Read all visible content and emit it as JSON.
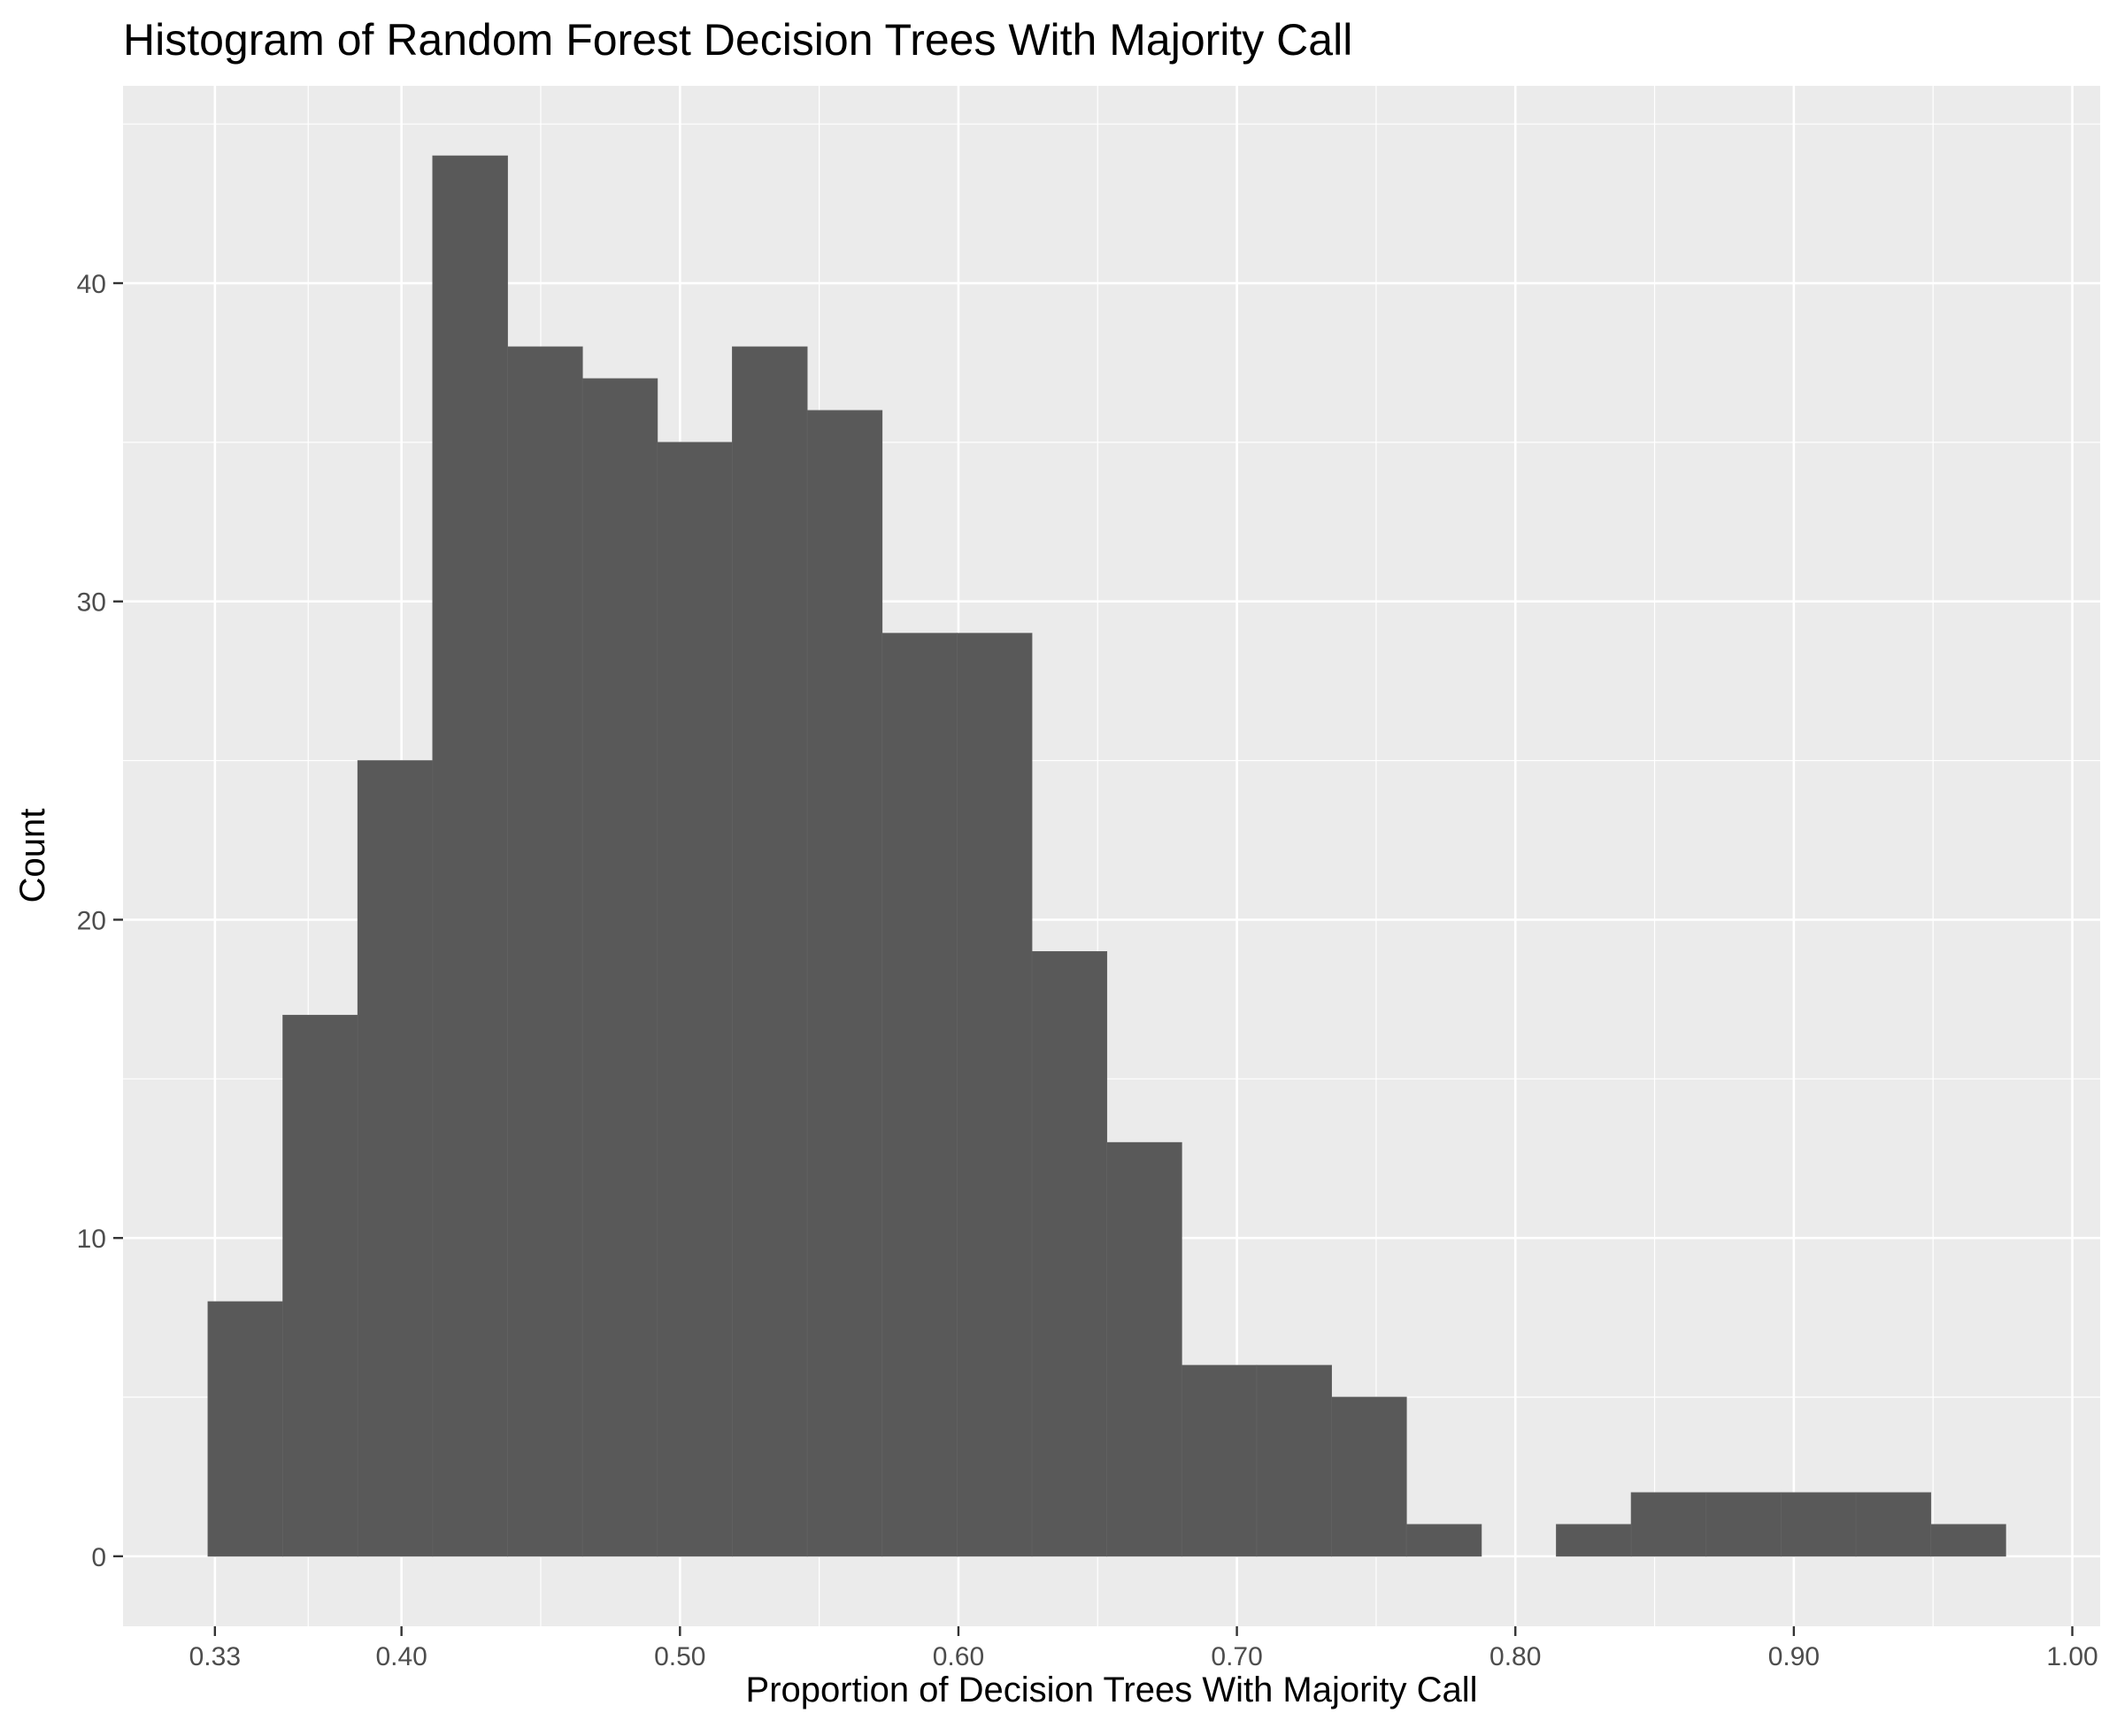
{
  "chart_data": {
    "type": "bar",
    "title": "Histogram of Random Forest Decision Trees With Majority Call",
    "xlabel": "Proportion of Decision Trees With Majority Call",
    "ylabel": "Count",
    "xlim": [
      0.3,
      1.01
    ],
    "ylim": [
      -2.2,
      46.2
    ],
    "x_ticks": [
      0.333,
      0.4,
      0.5,
      0.6,
      0.7,
      0.8,
      0.9,
      1.0
    ],
    "x_tick_labels": [
      "0.33",
      "0.40",
      "0.50",
      "0.60",
      "0.70",
      "0.80",
      "0.90",
      "1.00"
    ],
    "y_ticks": [
      0,
      10,
      20,
      30,
      40
    ],
    "y_tick_labels": [
      "0",
      "10",
      "20",
      "30",
      "40"
    ],
    "bin_width": 0.0269,
    "bin_starts": [
      0.3305,
      0.3574,
      0.3843,
      0.4112,
      0.4381,
      0.465,
      0.4919,
      0.5188,
      0.5457,
      0.5726,
      0.5995,
      0.6264,
      0.6533,
      0.6802,
      0.7071,
      0.734,
      0.7609,
      0.7878,
      0.8147,
      0.8416,
      0.8685,
      0.8954,
      0.9223,
      0.9492
    ],
    "counts": [
      8,
      17,
      25,
      44,
      38,
      37,
      35,
      38,
      36,
      29,
      29,
      19,
      13,
      6,
      6,
      5,
      1,
      0,
      1,
      2,
      2,
      2,
      2,
      1
    ],
    "grid": true,
    "colors": {
      "bar": "#595959",
      "panel": "#ebebeb",
      "grid": "#ffffff",
      "tick": "#333333"
    }
  }
}
